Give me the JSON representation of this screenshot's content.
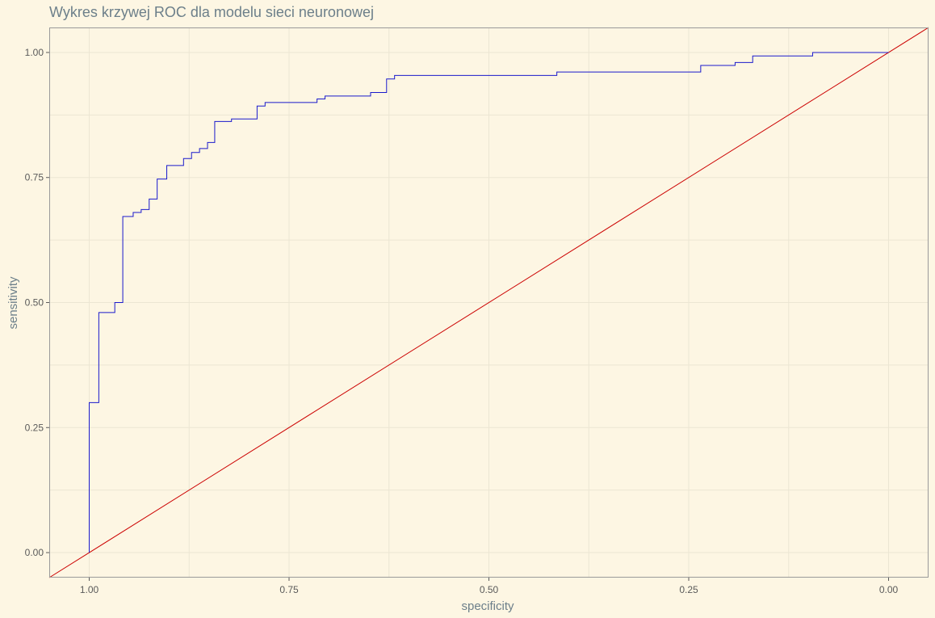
{
  "chart_data": {
    "type": "line",
    "title": "Wykres krzywej ROC dla modelu sieci neuronowej",
    "xlabel": "specificity",
    "ylabel": "sensitivity",
    "x_reversed": true,
    "xlim": [
      1.05,
      -0.05
    ],
    "ylim": [
      -0.05,
      1.05
    ],
    "x_ticks": [
      1.0,
      0.75,
      0.5,
      0.25,
      0.0
    ],
    "x_tick_labels": [
      "1.00",
      "0.75",
      "0.50",
      "0.25",
      "0.00"
    ],
    "y_ticks": [
      0.0,
      0.25,
      0.5,
      0.75,
      1.0
    ],
    "y_tick_labels": [
      "0.00",
      "0.25",
      "0.50",
      "0.75",
      "1.00"
    ],
    "grid": true,
    "colors": {
      "background": "#fdf6e3",
      "grid": "#ece6d3",
      "border": "#9a9a9a",
      "roc": "#1a1acc",
      "diagonal": "#cc0000"
    },
    "series": [
      {
        "color": "#1a1acc",
        "points": [
          [
            1.0,
            0.0
          ],
          [
            1.0,
            0.3
          ],
          [
            0.988,
            0.3
          ],
          [
            0.988,
            0.48
          ],
          [
            0.968,
            0.48
          ],
          [
            0.968,
            0.5
          ],
          [
            0.958,
            0.5
          ],
          [
            0.958,
            0.672
          ],
          [
            0.945,
            0.672
          ],
          [
            0.945,
            0.68
          ],
          [
            0.935,
            0.68
          ],
          [
            0.935,
            0.686
          ],
          [
            0.925,
            0.686
          ],
          [
            0.925,
            0.707
          ],
          [
            0.915,
            0.707
          ],
          [
            0.915,
            0.747
          ],
          [
            0.903,
            0.747
          ],
          [
            0.903,
            0.774
          ],
          [
            0.882,
            0.774
          ],
          [
            0.882,
            0.788
          ],
          [
            0.872,
            0.788
          ],
          [
            0.872,
            0.8
          ],
          [
            0.862,
            0.8
          ],
          [
            0.862,
            0.808
          ],
          [
            0.852,
            0.808
          ],
          [
            0.852,
            0.82
          ],
          [
            0.843,
            0.82
          ],
          [
            0.843,
            0.862
          ],
          [
            0.822,
            0.862
          ],
          [
            0.822,
            0.867
          ],
          [
            0.79,
            0.867
          ],
          [
            0.79,
            0.893
          ],
          [
            0.78,
            0.893
          ],
          [
            0.78,
            0.9
          ],
          [
            0.715,
            0.9
          ],
          [
            0.715,
            0.907
          ],
          [
            0.705,
            0.907
          ],
          [
            0.705,
            0.913
          ],
          [
            0.648,
            0.913
          ],
          [
            0.648,
            0.92
          ],
          [
            0.628,
            0.92
          ],
          [
            0.628,
            0.947
          ],
          [
            0.618,
            0.947
          ],
          [
            0.618,
            0.954
          ],
          [
            0.415,
            0.954
          ],
          [
            0.415,
            0.961
          ],
          [
            0.235,
            0.961
          ],
          [
            0.235,
            0.974
          ],
          [
            0.192,
            0.974
          ],
          [
            0.192,
            0.98
          ],
          [
            0.17,
            0.98
          ],
          [
            0.17,
            0.993
          ],
          [
            0.095,
            0.993
          ],
          [
            0.095,
            1.0
          ],
          [
            0.0,
            1.0
          ]
        ]
      },
      {
        "color": "#cc0000",
        "points": [
          [
            1.05,
            -0.05
          ],
          [
            -0.05,
            1.05
          ]
        ]
      }
    ]
  }
}
